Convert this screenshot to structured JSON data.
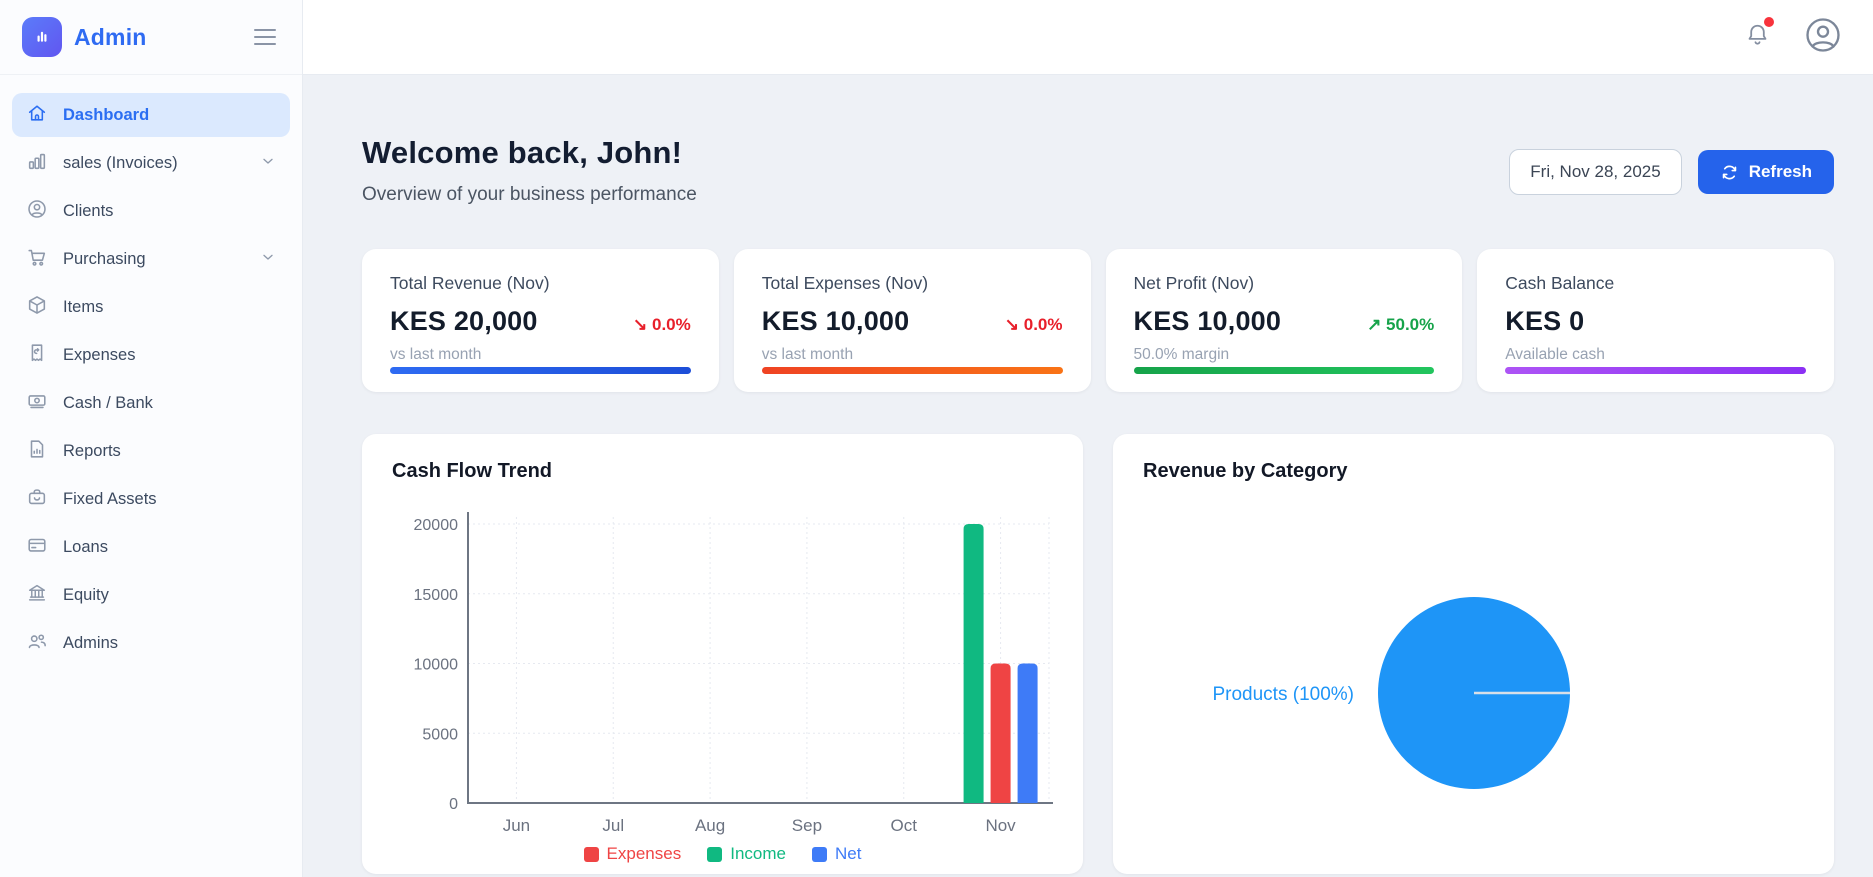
{
  "app": {
    "name": "Admin"
  },
  "colors": {
    "accent": "#2563eb",
    "active_item_bg": "#dbe9fe",
    "active_item_text": "#2b6ef2",
    "negative": "#e8202b",
    "positive": "#16a34a",
    "notification_dot": "#f8333c"
  },
  "sidebar": {
    "items": [
      {
        "label": "Dashboard",
        "icon": "home-icon",
        "active": true,
        "chevron": false
      },
      {
        "label": "sales (Invoices)",
        "icon": "bar-chart-icon",
        "active": false,
        "chevron": true
      },
      {
        "label": "Clients",
        "icon": "user-circle-icon",
        "active": false,
        "chevron": false
      },
      {
        "label": "Purchasing",
        "icon": "shopping-cart-icon",
        "active": false,
        "chevron": true
      },
      {
        "label": "Items",
        "icon": "cube-icon",
        "active": false,
        "chevron": false
      },
      {
        "label": "Expenses",
        "icon": "receipt-icon",
        "active": false,
        "chevron": false
      },
      {
        "label": "Cash / Bank",
        "icon": "banknote-icon",
        "active": false,
        "chevron": false
      },
      {
        "label": "Reports",
        "icon": "report-icon",
        "active": false,
        "chevron": false
      },
      {
        "label": "Fixed Assets",
        "icon": "briefcase-icon",
        "active": false,
        "chevron": false
      },
      {
        "label": "Loans",
        "icon": "credit-card-icon",
        "active": false,
        "chevron": false
      },
      {
        "label": "Equity",
        "icon": "bank-icon",
        "active": false,
        "chevron": false
      },
      {
        "label": "Admins",
        "icon": "users-icon",
        "active": false,
        "chevron": false
      }
    ]
  },
  "header": {
    "notifications_unread": true
  },
  "welcome": {
    "title": "Welcome back, John!",
    "subtitle": "Overview of your business performance",
    "date": "Fri, Nov 28, 2025",
    "refresh_label": "Refresh"
  },
  "stats": [
    {
      "title": "Total Revenue (Nov)",
      "value": "KES 20,000",
      "note": "vs last month",
      "delta": {
        "text": "↘ 0.0%",
        "color": "#e8202b"
      },
      "bar_colors": [
        "#2e6bf2",
        "#1d4ed8"
      ]
    },
    {
      "title": "Total Expenses (Nov)",
      "value": "KES 10,000",
      "note": "vs last month",
      "delta": {
        "text": "↘ 0.0%",
        "color": "#e8202b"
      },
      "bar_colors": [
        "#ef4323",
        "#f97316"
      ]
    },
    {
      "title": "Net Profit (Nov)",
      "value": "KES 10,000",
      "note": "50.0% margin",
      "delta": {
        "text": "↗ 50.0%",
        "color": "#16a34a"
      },
      "bar_colors": [
        "#16a34a",
        "#22c55e"
      ]
    },
    {
      "title": "Cash Balance",
      "value": "KES 0",
      "note": "Available cash",
      "delta": null,
      "bar_colors": [
        "#ad54f5",
        "#8b30f4"
      ]
    }
  ],
  "chart_data": [
    {
      "type": "bar",
      "title": "Cash Flow Trend",
      "categories": [
        "Jun",
        "Jul",
        "Aug",
        "Sep",
        "Oct",
        "Nov"
      ],
      "series": [
        {
          "name": "Income",
          "color": "#10b981",
          "values": [
            0,
            0,
            0,
            0,
            0,
            20000
          ]
        },
        {
          "name": "Expenses",
          "color": "#ef4444",
          "values": [
            0,
            0,
            0,
            0,
            0,
            10000
          ]
        },
        {
          "name": "Net",
          "color": "#3e7bf7",
          "values": [
            0,
            0,
            0,
            0,
            0,
            10000
          ]
        }
      ],
      "legend": [
        {
          "label": "Expenses",
          "color": "#ef4444"
        },
        {
          "label": "Income",
          "color": "#10b981"
        },
        {
          "label": "Net",
          "color": "#3e7bf7"
        }
      ],
      "xlabel": "",
      "ylabel": "",
      "ylim": [
        0,
        20000
      ],
      "yticks": [
        0,
        5000,
        10000,
        15000,
        20000
      ],
      "grid": true,
      "legend_position": "bottom"
    },
    {
      "type": "pie",
      "title": "Revenue by Category",
      "slices": [
        {
          "label": "Products",
          "percent": 100,
          "color": "#1e95f7",
          "display_label": "Products (100%)"
        }
      ],
      "legend_position": "none"
    }
  ]
}
